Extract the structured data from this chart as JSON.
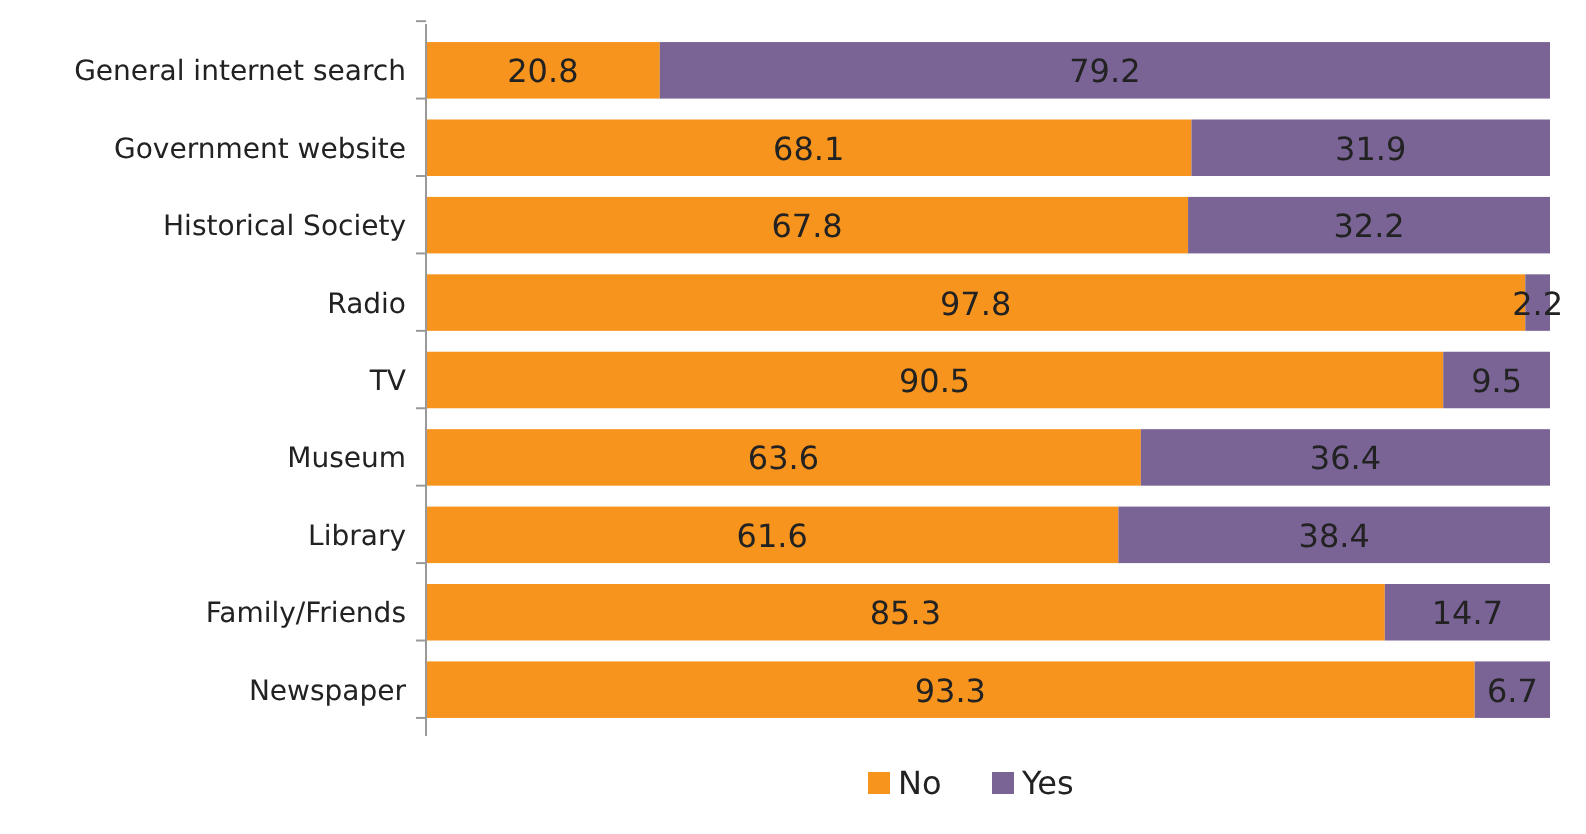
{
  "chart_data": {
    "type": "bar",
    "orientation": "horizontal",
    "stacked": true,
    "data_labels": true,
    "legend": "bottom",
    "xlim": [
      0,
      100
    ],
    "categories": [
      "General internet search",
      "Government website",
      "Historical Society",
      "Radio",
      "TV",
      "Museum",
      "Library",
      "Family/Friends",
      "Newspaper"
    ],
    "series": [
      {
        "name": "No",
        "color": "#f7941d",
        "values": [
          20.8,
          68.1,
          67.8,
          97.8,
          90.5,
          63.6,
          61.6,
          85.3,
          93.3
        ]
      },
      {
        "name": "Yes",
        "color": "#7a6496",
        "values": [
          79.2,
          31.9,
          32.2,
          2.2,
          9.5,
          36.4,
          38.4,
          14.7,
          6.7
        ]
      }
    ]
  }
}
